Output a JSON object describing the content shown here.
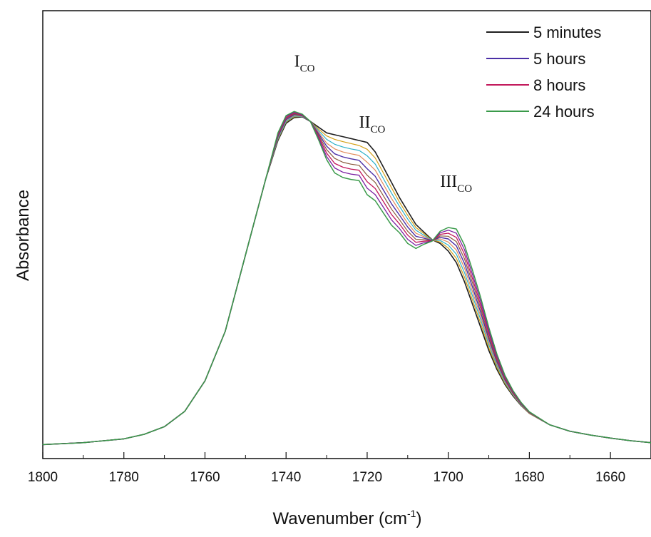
{
  "chart_data": {
    "type": "line",
    "title": "",
    "xlabel": "Wavenumber (cm",
    "xlabel_sup": "-1",
    "xlabel_suffix": ")",
    "ylabel": "Absorbance",
    "xlim": [
      1800,
      1650
    ],
    "x_reversed": true,
    "ylim": [
      0,
      1.0
    ],
    "y_ticks_shown": false,
    "grid": false,
    "legend_position": "top-right",
    "x_ticks": [
      1800,
      1780,
      1760,
      1740,
      1720,
      1700,
      1680,
      1660
    ],
    "x_tick_labels": [
      "1800",
      "1780",
      "1760",
      "1740",
      "1720",
      "1700",
      "1680",
      "1660"
    ],
    "x": [
      1800,
      1790,
      1780,
      1775,
      1770,
      1765,
      1760,
      1755,
      1750,
      1745,
      1742,
      1740,
      1738,
      1736,
      1734,
      1732,
      1730,
      1728,
      1726,
      1724,
      1722,
      1720,
      1718,
      1716,
      1714,
      1712,
      1710,
      1708,
      1706,
      1704,
      1702,
      1700,
      1698,
      1696,
      1694,
      1692,
      1690,
      1688,
      1686,
      1684,
      1682,
      1680,
      1675,
      1670,
      1665,
      1660,
      1655,
      1650
    ],
    "annotations": [
      {
        "text": "I",
        "sub": "CO",
        "x": 1738,
        "y": 0.975
      },
      {
        "text": "II",
        "sub": "CO",
        "x": 1722,
        "y": 0.815
      },
      {
        "text": "III",
        "sub": "CO",
        "x": 1702,
        "y": 0.66
      }
    ],
    "series": [
      {
        "name": "5 minutes",
        "legend": true,
        "color": "#1f1f1f",
        "width": 1.6,
        "values": [
          0.003,
          0.008,
          0.018,
          0.03,
          0.05,
          0.09,
          0.17,
          0.3,
          0.5,
          0.7,
          0.8,
          0.845,
          0.86,
          0.862,
          0.85,
          0.835,
          0.82,
          0.815,
          0.81,
          0.805,
          0.8,
          0.795,
          0.77,
          0.73,
          0.69,
          0.65,
          0.615,
          0.58,
          0.56,
          0.54,
          0.53,
          0.51,
          0.48,
          0.43,
          0.37,
          0.31,
          0.25,
          0.2,
          0.16,
          0.13,
          0.105,
          0.085,
          0.055,
          0.038,
          0.028,
          0.02,
          0.013,
          0.008
        ]
      },
      {
        "name": "",
        "legend": false,
        "color": "#d4a017",
        "width": 1.2,
        "values": [
          0.003,
          0.008,
          0.018,
          0.03,
          0.05,
          0.09,
          0.17,
          0.3,
          0.5,
          0.7,
          0.803,
          0.848,
          0.862,
          0.863,
          0.85,
          0.83,
          0.812,
          0.803,
          0.797,
          0.792,
          0.787,
          0.777,
          0.754,
          0.715,
          0.676,
          0.638,
          0.604,
          0.572,
          0.556,
          0.539,
          0.534,
          0.518,
          0.491,
          0.442,
          0.381,
          0.32,
          0.257,
          0.205,
          0.163,
          0.132,
          0.106,
          0.085,
          0.055,
          0.038,
          0.028,
          0.02,
          0.013,
          0.008
        ]
      },
      {
        "name": "",
        "legend": false,
        "color": "#2bb0c8",
        "width": 1.2,
        "values": [
          0.003,
          0.008,
          0.018,
          0.03,
          0.05,
          0.09,
          0.17,
          0.3,
          0.5,
          0.7,
          0.805,
          0.85,
          0.864,
          0.863,
          0.85,
          0.826,
          0.803,
          0.79,
          0.783,
          0.778,
          0.774,
          0.76,
          0.738,
          0.7,
          0.662,
          0.627,
          0.594,
          0.565,
          0.552,
          0.539,
          0.538,
          0.526,
          0.502,
          0.454,
          0.392,
          0.33,
          0.265,
          0.21,
          0.166,
          0.133,
          0.107,
          0.086,
          0.055,
          0.038,
          0.028,
          0.02,
          0.013,
          0.008
        ]
      },
      {
        "name": "",
        "legend": false,
        "color": "#e28a5a",
        "width": 1.2,
        "values": [
          0.003,
          0.008,
          0.018,
          0.03,
          0.05,
          0.09,
          0.17,
          0.3,
          0.5,
          0.7,
          0.808,
          0.853,
          0.866,
          0.864,
          0.85,
          0.822,
          0.793,
          0.778,
          0.77,
          0.765,
          0.761,
          0.743,
          0.722,
          0.685,
          0.648,
          0.615,
          0.583,
          0.557,
          0.548,
          0.538,
          0.542,
          0.534,
          0.513,
          0.466,
          0.403,
          0.339,
          0.272,
          0.215,
          0.169,
          0.135,
          0.108,
          0.086,
          0.055,
          0.038,
          0.028,
          0.02,
          0.013,
          0.008
        ]
      },
      {
        "name": "5 hours",
        "legend": true,
        "color": "#4b2fa6",
        "width": 1.4,
        "values": [
          0.003,
          0.008,
          0.018,
          0.03,
          0.05,
          0.09,
          0.17,
          0.3,
          0.5,
          0.7,
          0.81,
          0.855,
          0.868,
          0.865,
          0.85,
          0.818,
          0.785,
          0.765,
          0.757,
          0.752,
          0.748,
          0.726,
          0.706,
          0.67,
          0.634,
          0.604,
          0.573,
          0.549,
          0.544,
          0.538,
          0.546,
          0.542,
          0.524,
          0.478,
          0.415,
          0.349,
          0.28,
          0.22,
          0.172,
          0.137,
          0.109,
          0.087,
          0.055,
          0.038,
          0.028,
          0.02,
          0.013,
          0.008
        ]
      },
      {
        "name": "",
        "legend": false,
        "color": "#8a5a3c",
        "width": 1.2,
        "values": [
          0.003,
          0.008,
          0.018,
          0.03,
          0.05,
          0.09,
          0.17,
          0.3,
          0.5,
          0.7,
          0.813,
          0.858,
          0.87,
          0.866,
          0.85,
          0.814,
          0.776,
          0.753,
          0.743,
          0.738,
          0.735,
          0.709,
          0.69,
          0.655,
          0.62,
          0.592,
          0.562,
          0.541,
          0.54,
          0.537,
          0.55,
          0.549,
          0.535,
          0.49,
          0.426,
          0.359,
          0.287,
          0.225,
          0.175,
          0.138,
          0.11,
          0.087,
          0.055,
          0.038,
          0.028,
          0.02,
          0.013,
          0.008
        ]
      },
      {
        "name": "8 hours",
        "legend": true,
        "color": "#c2185b",
        "width": 1.3,
        "values": [
          0.003,
          0.008,
          0.018,
          0.03,
          0.05,
          0.09,
          0.17,
          0.3,
          0.5,
          0.7,
          0.815,
          0.86,
          0.872,
          0.867,
          0.85,
          0.81,
          0.767,
          0.74,
          0.73,
          0.725,
          0.722,
          0.692,
          0.674,
          0.64,
          0.606,
          0.581,
          0.552,
          0.533,
          0.536,
          0.537,
          0.554,
          0.557,
          0.546,
          0.502,
          0.437,
          0.368,
          0.295,
          0.23,
          0.178,
          0.14,
          0.111,
          0.088,
          0.055,
          0.038,
          0.028,
          0.02,
          0.013,
          0.008
        ]
      },
      {
        "name": "",
        "legend": false,
        "color": "#7b1fa2",
        "width": 1.3,
        "values": [
          0.003,
          0.008,
          0.018,
          0.03,
          0.05,
          0.09,
          0.17,
          0.3,
          0.5,
          0.7,
          0.818,
          0.863,
          0.874,
          0.868,
          0.85,
          0.806,
          0.758,
          0.728,
          0.717,
          0.712,
          0.709,
          0.675,
          0.658,
          0.625,
          0.592,
          0.569,
          0.541,
          0.525,
          0.532,
          0.536,
          0.558,
          0.565,
          0.557,
          0.514,
          0.448,
          0.378,
          0.302,
          0.235,
          0.181,
          0.142,
          0.112,
          0.088,
          0.055,
          0.038,
          0.028,
          0.02,
          0.013,
          0.008
        ]
      },
      {
        "name": "24 hours",
        "legend": true,
        "color": "#3a9a4a",
        "width": 1.5,
        "values": [
          0.003,
          0.008,
          0.018,
          0.03,
          0.05,
          0.09,
          0.17,
          0.3,
          0.5,
          0.7,
          0.82,
          0.865,
          0.876,
          0.869,
          0.85,
          0.802,
          0.75,
          0.715,
          0.703,
          0.698,
          0.695,
          0.658,
          0.642,
          0.61,
          0.578,
          0.558,
          0.53,
          0.517,
          0.528,
          0.536,
          0.562,
          0.572,
          0.568,
          0.526,
          0.459,
          0.388,
          0.31,
          0.24,
          0.184,
          0.144,
          0.113,
          0.089,
          0.055,
          0.038,
          0.028,
          0.02,
          0.013,
          0.008
        ]
      }
    ]
  }
}
